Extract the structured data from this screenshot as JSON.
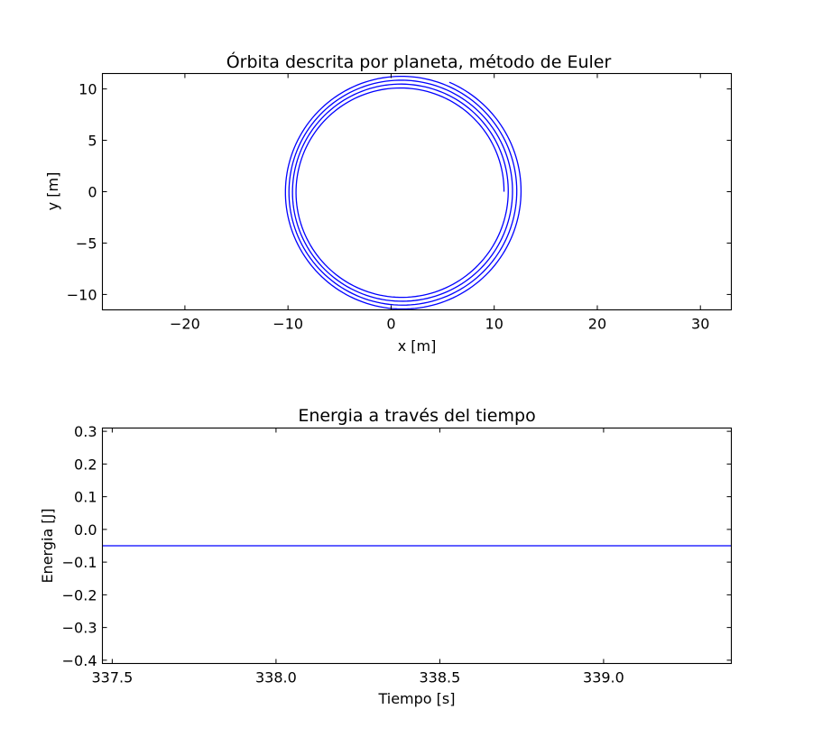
{
  "chart_data": [
    {
      "id": "orbit",
      "type": "line",
      "title": "Órbita descrita por planeta, método de Euler",
      "xlabel": "x [m]",
      "ylabel": "y [m]",
      "xlim": [
        -28,
        33
      ],
      "ylim": [
        -11.5,
        11.5
      ],
      "xticks": [
        -20,
        -10,
        0,
        10,
        20,
        30
      ],
      "xtick_labels": [
        "−20",
        "−10",
        "0",
        "10",
        "20",
        "30"
      ],
      "yticks": [
        -10,
        -5,
        0,
        5,
        10
      ],
      "ytick_labels": [
        "−10",
        "−5",
        "0",
        "5",
        "10"
      ],
      "grid": false,
      "series": [
        {
          "color": "#0000ff",
          "parametric": {
            "t_start": 0,
            "t_end": 26.3,
            "samples": 700,
            "x": "r*cos(t)+cx",
            "y": "r*sin(t)",
            "r": "10 + 0.378*t/(2*pi)",
            "cx": "0.95 + 0.035*t/(2*pi)"
          }
        }
      ]
    },
    {
      "id": "energy",
      "type": "line",
      "title": "Energia a través del tiempo",
      "xlabel": "Tiempo [s]",
      "ylabel": "Energia [J]",
      "xlim": [
        337.47,
        339.39
      ],
      "ylim": [
        -0.41,
        0.31
      ],
      "xticks": [
        337.5,
        338.0,
        338.5,
        339.0
      ],
      "xtick_labels": [
        "337.5",
        "338.0",
        "338.5",
        "339.0"
      ],
      "yticks": [
        0.3,
        0.2,
        0.1,
        0.0,
        -0.1,
        -0.2,
        -0.3,
        -0.4
      ],
      "ytick_labels": [
        "0.3",
        "0.2",
        "0.1",
        "0.0",
        "−0.1",
        "−0.2",
        "−0.3",
        "−0.4"
      ],
      "grid": false,
      "series": [
        {
          "color": "#0000ff",
          "x": [
            337.47,
            339.39
          ],
          "y": [
            -0.05,
            -0.05
          ]
        }
      ]
    }
  ]
}
